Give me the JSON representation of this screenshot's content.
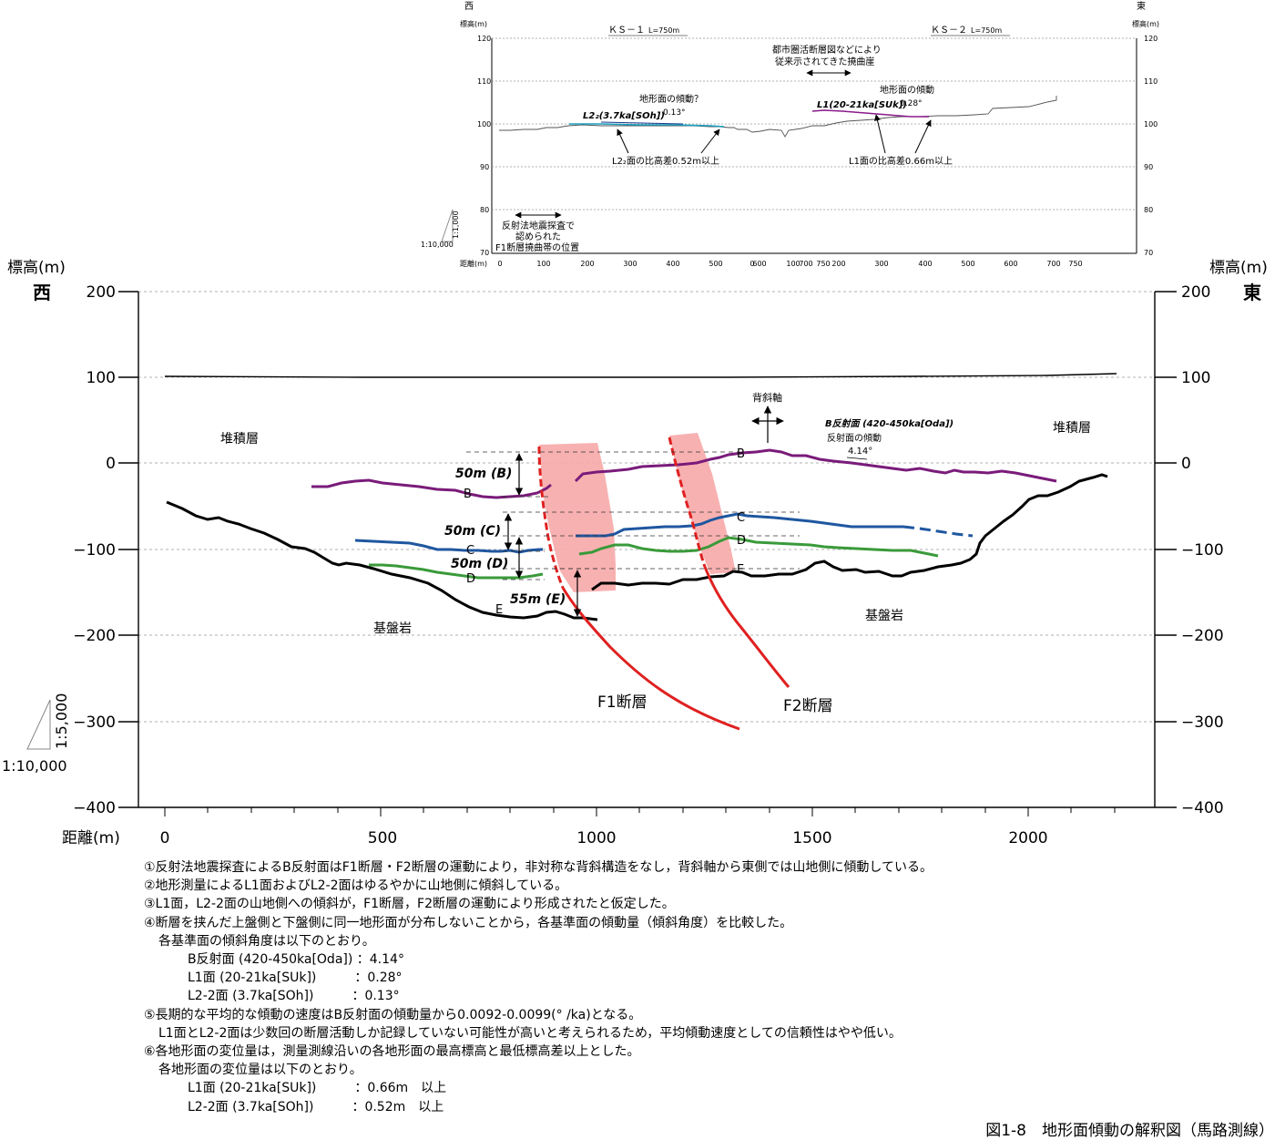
{
  "top_profile": {
    "west": "西",
    "east": "東",
    "elev_label_left": "標高(m)",
    "elev_label_right": "標高(m)",
    "line_ks1": "ＫＳ－１",
    "line_ks1_len": "L=750m",
    "line_ks2": "ＫＳ－２",
    "line_ks2_len": "L=750m",
    "y_ticks": [
      "120",
      "110",
      "100",
      "90",
      "80",
      "70"
    ],
    "distance_label": "距離(m)",
    "x_ticks_ks1": [
      "0",
      "100",
      "200",
      "300",
      "400",
      "500",
      "0",
      "600",
      "100",
      "700",
      "750",
      "200"
    ],
    "x_ticks_ks2": [
      "300",
      "400",
      "500",
      "600",
      "700",
      "750"
    ],
    "annotations": {
      "flexure_1": "都市圏活断層図などにより",
      "flexure_2": "従来示されてきた撓曲崖",
      "tilt_q": "地形面の傾動？",
      "tilt": "地形面の傾動",
      "angle_l22": "0.13°",
      "angle_l1": "0.28°",
      "l22_surface": "L2₂(3.7ka[SOh])",
      "l1_surface": "L1(20-21ka[SUk])",
      "l22_height": "L2₂面の比高差0.52m以上",
      "l1_height": "L1面の比高差0.66m以上",
      "seismic_1": "反射法地震探査で",
      "seismic_2": "認められた",
      "seismic_3": "F1断層撓曲帯の位置"
    },
    "scale_v": "1:1,000",
    "scale_h": "1:10,000"
  },
  "main_section": {
    "elev_label_left": "標高(m)",
    "elev_label_right": "標高(m)",
    "west": "西",
    "east": "東",
    "y_ticks": [
      "200",
      "100",
      "0",
      "−100",
      "−200",
      "−300",
      "−400"
    ],
    "distance_label": "距離(m)",
    "x_ticks": [
      "0",
      "500",
      "1000",
      "1500",
      "2000"
    ],
    "scale_v": "1:5,000",
    "scale_h": "1:10,000",
    "labels": {
      "sediment_left": "堆積層",
      "sediment_right": "堆積層",
      "basement_left": "基盤岩",
      "basement_right": "基盤岩",
      "anticline_axis": "背斜軸",
      "b_surface": "B反射面 (420-450ka[Oda])",
      "b_tilt": "反射面の傾動",
      "b_angle": "4.14°",
      "f1": "F1断層",
      "f2": "F2断層",
      "offset_b": "50m (B)",
      "offset_c": "50m (C)",
      "offset_d": "50m (D)",
      "offset_e": "55m (E)",
      "horizon_b": "B",
      "horizon_c": "C",
      "horizon_d": "D",
      "horizon_e": "E"
    },
    "colors": {
      "horizon_b": "#7a1b7a",
      "horizon_c": "#1f57a0",
      "horizon_d": "#3a9a3a",
      "basement": "#000000",
      "fault": "#e02020",
      "fault_zone": "#f7a8a8"
    }
  },
  "notes": [
    "①反射法地震探査によるB反射面はF1断層・F2断層の運動により，非対称な背斜構造をなし，背斜軸から東側では山地側に傾動している。",
    "②地形測量によるL1面およびL2-2面はゆるやかに山地側に傾斜している。",
    "③L1面，L2-2面の山地側への傾斜が，F1断層，F2断層の運動により形成されたと仮定した。",
    "④断層を挟んだ上盤側と下盤側に同一地形面が分布しないことから，各基準面の傾動量（傾斜角度）を比較した。",
    "各基準面の傾斜角度は以下のとおり。",
    "B反射面 (420-450ka[Oda]) ：4.14°",
    "L1面 (20-21ka[SUk])　　　：0.28°",
    "L2-2面 (3.7ka[SOh])　　　：0.13°",
    "⑤長期的な平均的な傾動の速度はB反射面の傾動量から0.0092-0.0099(° /ka)となる。",
    "L1面とL2-2面は少数回の断層活動しか記録していない可能性が高いと考えられるため，平均傾動速度としての信頼性はやや低い。",
    "⑥各地形面の変位量は，測量測線沿いの各地形面の最高標高と最低標高差以上とした。",
    "各地形面の変位量は以下のとおり。",
    "L1面 (20-21ka[SUk])　　　：0.66m　以上",
    "L2-2面 (3.7ka[SOh])　　　：0.52m　以上"
  ],
  "caption": "図1-8　地形面傾動の解釈図（馬路測線）"
}
